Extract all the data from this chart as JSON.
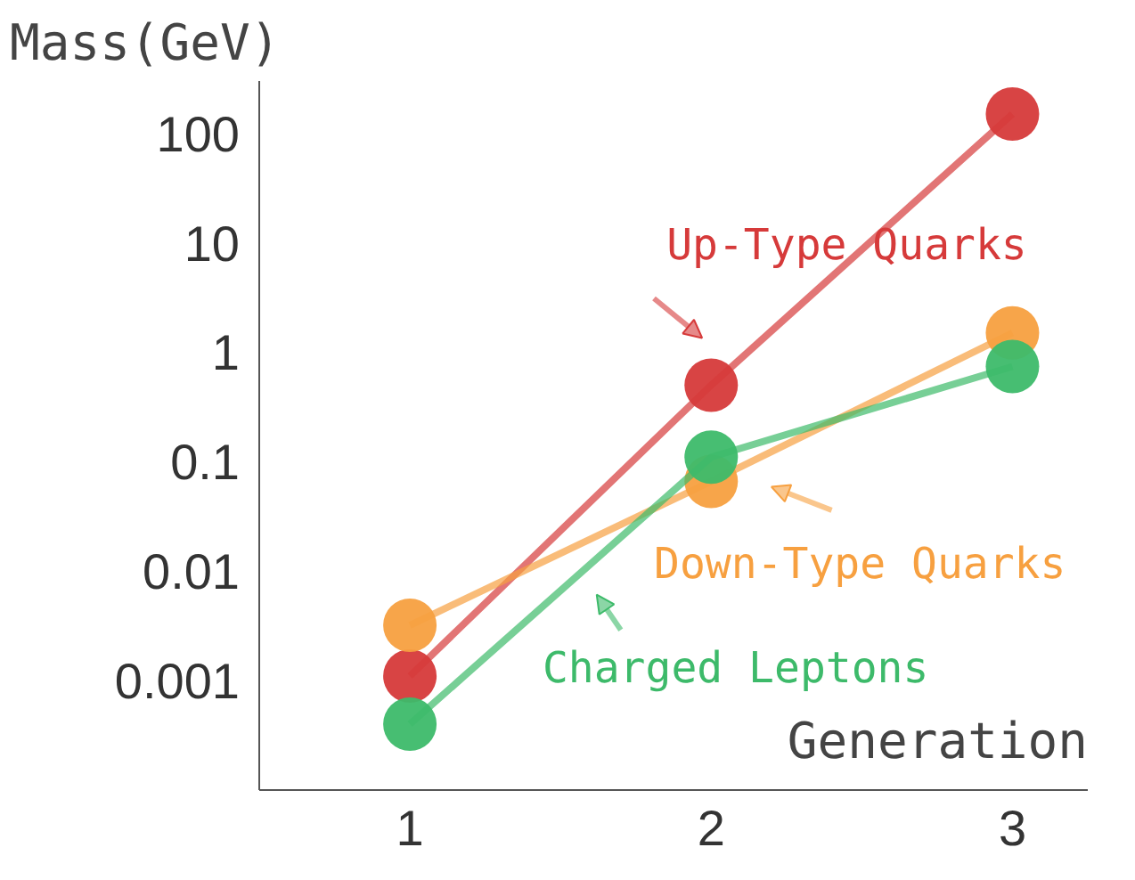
{
  "chart_data": {
    "type": "line",
    "ylabel": "Mass(GeV)",
    "xlabel": "Generation",
    "log": "y",
    "marker": "circle",
    "grid": false,
    "legend": "bottom right",
    "x": [
      1,
      2,
      3
    ],
    "xlim": [
      0.5,
      3.25
    ],
    "xticks": [
      1,
      2,
      3
    ],
    "ylim": [
      0.0001,
      300
    ],
    "yticks": [
      0.001,
      0.01,
      0.1,
      1,
      10,
      100
    ],
    "series": [
      {
        "name": "Up-Type Quarks",
        "color": "#d63a3a",
        "values": [
          0.0011,
          0.5,
          150
        ]
      },
      {
        "name": "Down-Type Quarks",
        "color": "#f7a040",
        "values": [
          0.0032,
          0.066,
          1.5
        ]
      },
      {
        "name": "Charged Leptons",
        "color": "#3dba6a",
        "values": [
          0.0004,
          0.11,
          0.74
        ]
      }
    ]
  }
}
